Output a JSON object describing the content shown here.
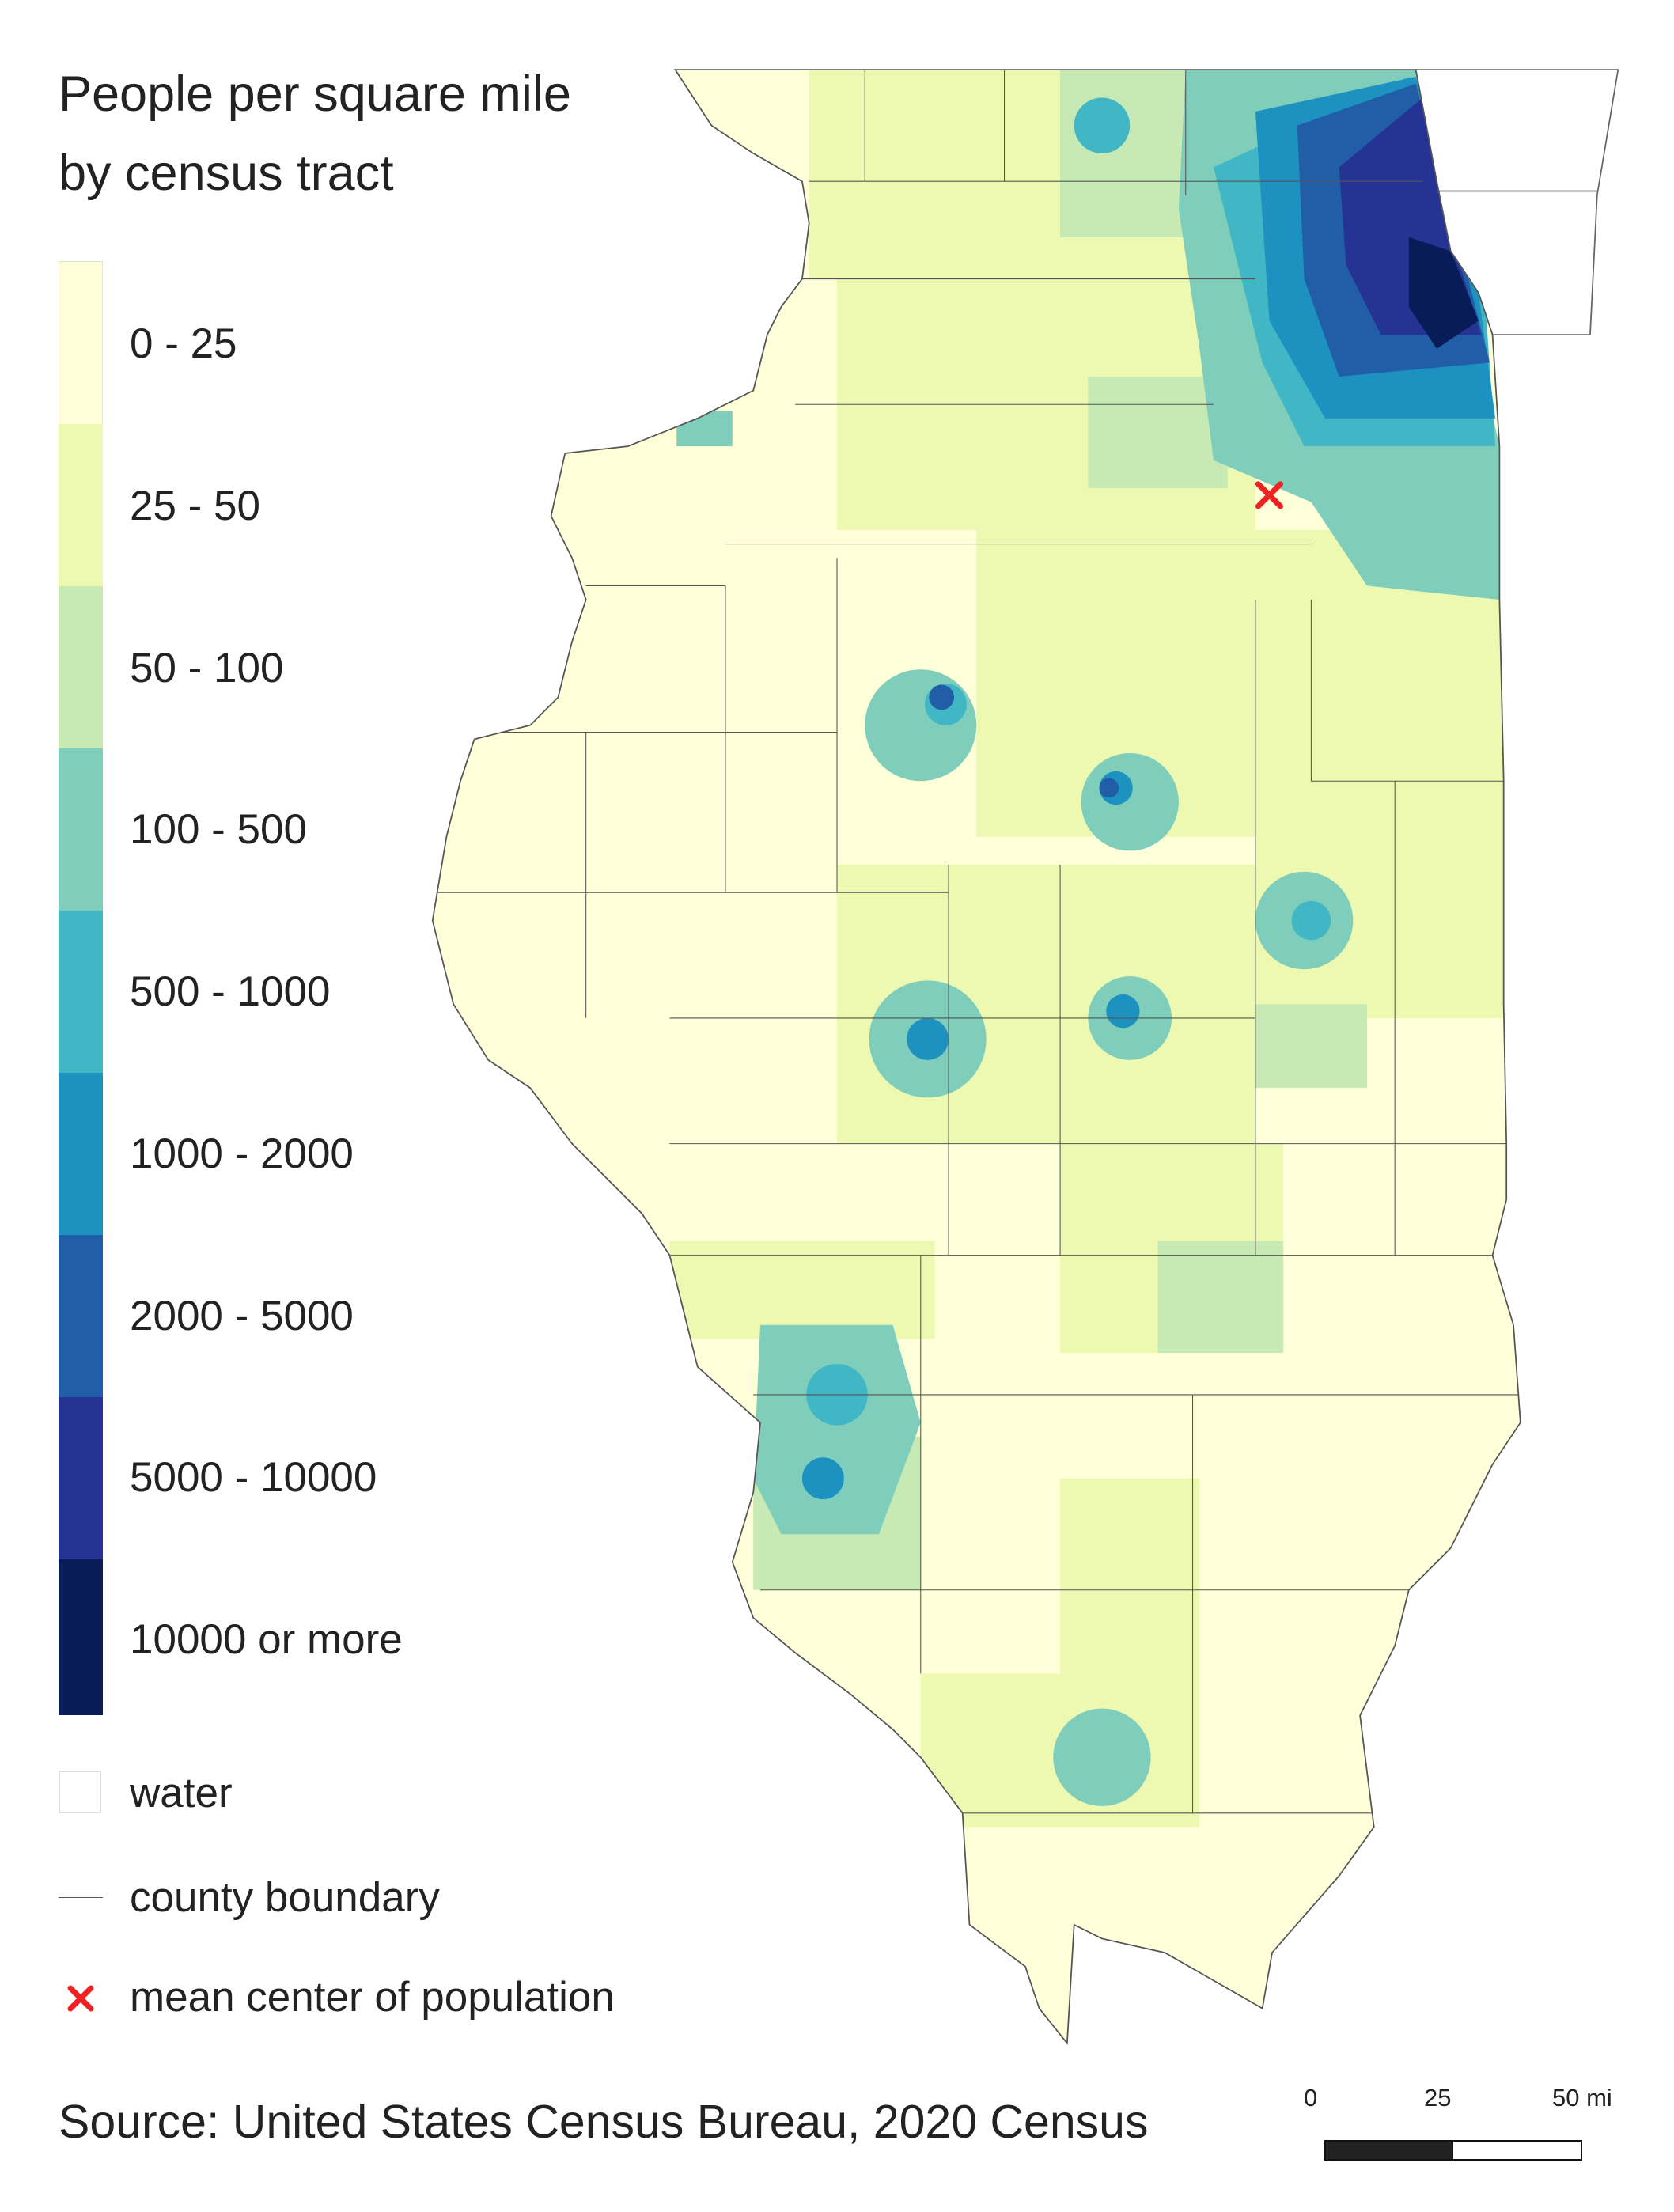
{
  "title": {
    "line1": "People per square mile",
    "line2": "by census tract"
  },
  "legend": {
    "classes": [
      {
        "label": "0 - 25",
        "color": "#ffffd9"
      },
      {
        "label": "25 - 50",
        "color": "#edf8b1"
      },
      {
        "label": "50 - 100",
        "color": "#c7e9b4"
      },
      {
        "label": "100 - 500",
        "color": "#7fcdbb"
      },
      {
        "label": "500 - 1000",
        "color": "#41b6c4"
      },
      {
        "label": "1000 - 2000",
        "color": "#1d91c0"
      },
      {
        "label": "2000 - 5000",
        "color": "#225ea8"
      },
      {
        "label": "5000 - 10000",
        "color": "#253494"
      },
      {
        "label": "10000 or more",
        "color": "#081d58"
      }
    ],
    "water": "water",
    "county_boundary": "county boundary",
    "mean_center": "mean center of population",
    "mean_center_color": "#ee2222"
  },
  "source": "Source: United States Census Bureau, 2020 Census",
  "scale_bar": {
    "ticks": [
      "0",
      "25",
      "50 mi"
    ]
  }
}
